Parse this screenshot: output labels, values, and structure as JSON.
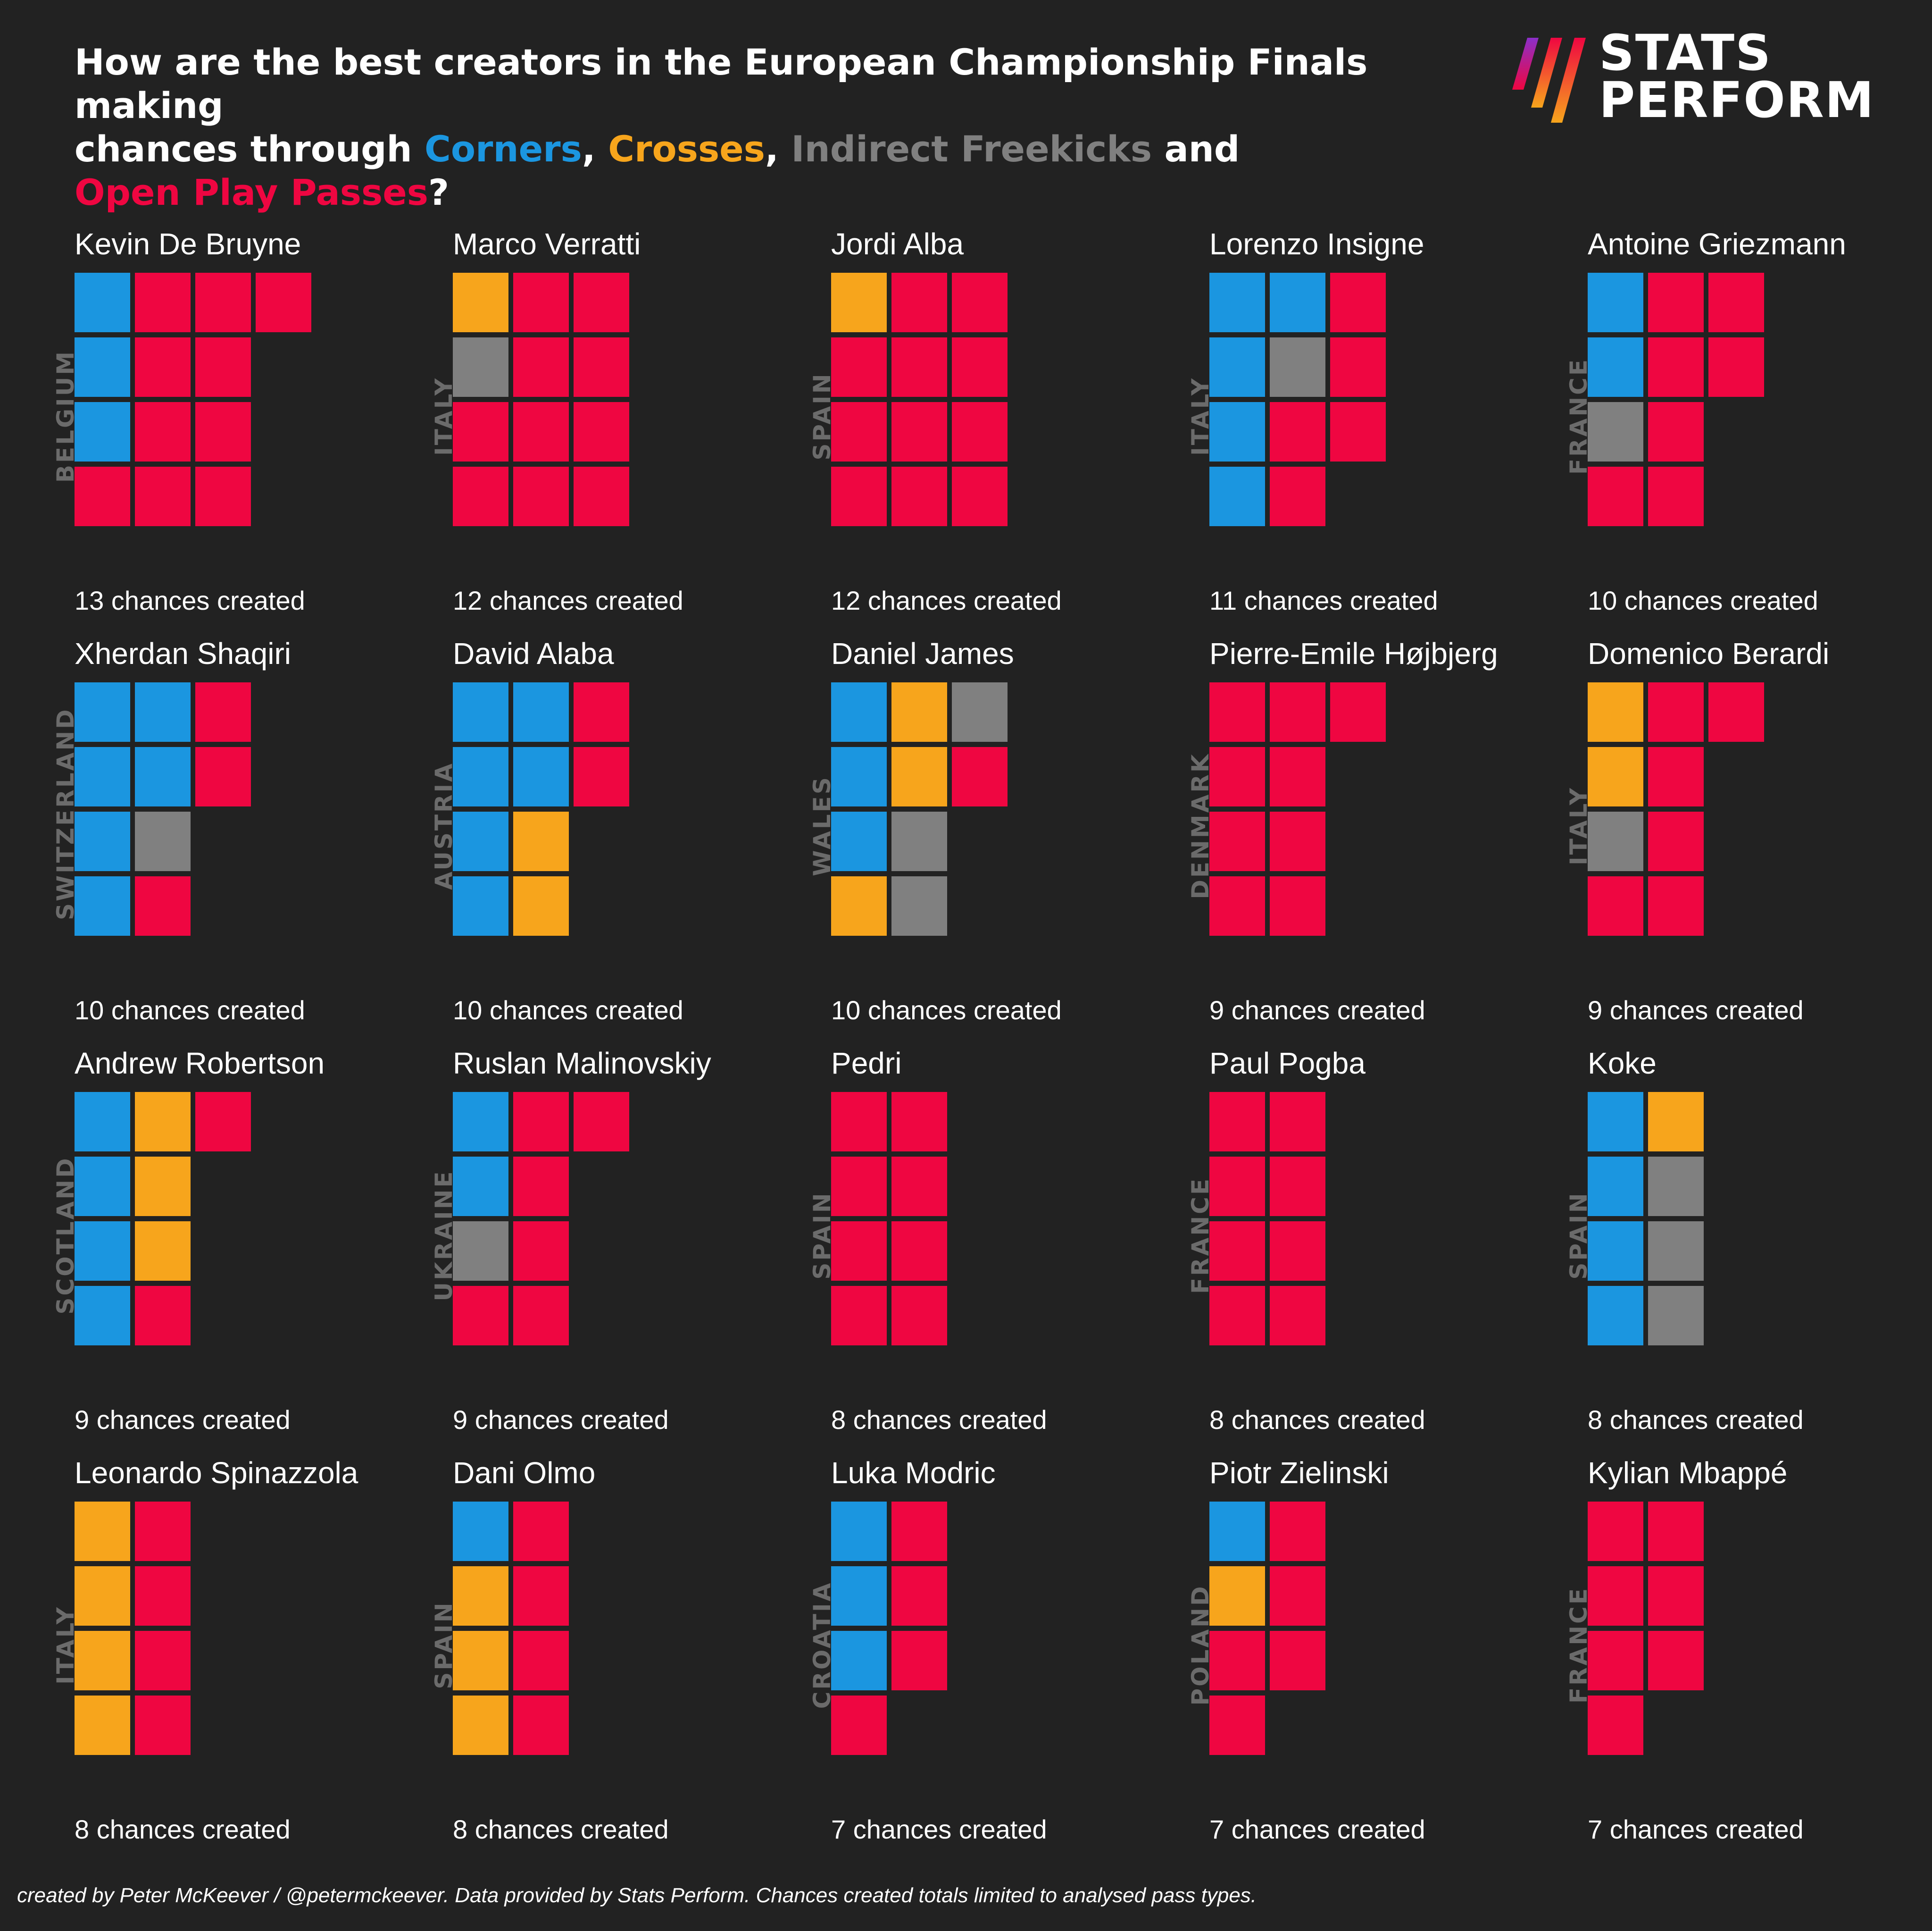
{
  "title": {
    "line1": "How are the best creators in the European Championship Finals making",
    "line2_prefix": "chances through ",
    "corners": "Corners",
    "sep1": ", ",
    "crosses": "Crosses",
    "sep2": ", ",
    "freekicks": "Indirect Freekicks",
    "and": " and",
    "openplay": "Open Play Passes",
    "end": "?"
  },
  "logo": {
    "line1": "STATS",
    "line2": "PERFORM"
  },
  "footer": "created by Peter McKeever / @petermckeever. Data provided by Stats Perform. Chances created totals limited to analysed pass types.",
  "colors": {
    "corner": "#1b96e0",
    "cross": "#f7a51c",
    "freekick": "#808080",
    "openplay": "#ef0641",
    "background": "#222222"
  },
  "chart_data": {
    "type": "waffle",
    "categories": [
      "Corners",
      "Crosses",
      "Indirect Freekicks",
      "Open Play Passes"
    ],
    "count_suffix": " chances created",
    "players": [
      {
        "name": "Kevin De Bruyne",
        "country": "BELGIUM",
        "total": 13,
        "corners": 3,
        "crosses": 0,
        "freekicks": 0,
        "openplay": 10,
        "cells": [
          "c",
          "o",
          "o",
          "o",
          "c",
          "o",
          "o",
          "c",
          "o",
          "o",
          "o",
          "o",
          "o"
        ]
      },
      {
        "name": "Marco Verratti",
        "country": "ITALY",
        "total": 12,
        "corners": 0,
        "crosses": 1,
        "freekicks": 1,
        "openplay": 10,
        "cells": [
          "x",
          "o",
          "o",
          "f",
          "o",
          "o",
          "o",
          "o",
          "o",
          "o",
          "o",
          "o"
        ]
      },
      {
        "name": "Jordi Alba",
        "country": "SPAIN",
        "total": 12,
        "corners": 0,
        "crosses": 1,
        "freekicks": 0,
        "openplay": 11,
        "cells": [
          "x",
          "o",
          "o",
          "o",
          "o",
          "o",
          "o",
          "o",
          "o",
          "o",
          "o",
          "o"
        ]
      },
      {
        "name": "Lorenzo Insigne",
        "country": "ITALY",
        "total": 11,
        "corners": 5,
        "crosses": 0,
        "freekicks": 1,
        "openplay": 5,
        "cells": [
          "c",
          "c",
          "o",
          "c",
          "f",
          "o",
          "c",
          "o",
          "o",
          "c",
          "o"
        ]
      },
      {
        "name": "Antoine Griezmann",
        "country": "FRANCE",
        "total": 10,
        "corners": 2,
        "crosses": 0,
        "freekicks": 1,
        "openplay": 7,
        "cells": [
          "c",
          "o",
          "o",
          "c",
          "o",
          "o",
          "f",
          "o",
          "o",
          "o"
        ]
      },
      {
        "name": "Xherdan Shaqiri",
        "country": "SWITZERLAND",
        "total": 10,
        "corners": 6,
        "crosses": 0,
        "freekicks": 1,
        "openplay": 3,
        "cells": [
          "c",
          "c",
          "o",
          "c",
          "c",
          "o",
          "c",
          "f",
          "c",
          "o"
        ]
      },
      {
        "name": "David Alaba",
        "country": "AUSTRIA",
        "total": 10,
        "corners": 6,
        "crosses": 2,
        "freekicks": 0,
        "openplay": 2,
        "cells": [
          "c",
          "c",
          "o",
          "c",
          "c",
          "o",
          "c",
          "x",
          "c",
          "x"
        ]
      },
      {
        "name": "Daniel James",
        "country": "WALES",
        "total": 10,
        "corners": 3,
        "crosses": 3,
        "freekicks": 3,
        "openplay": 1,
        "cells": [
          "c",
          "x",
          "f",
          "c",
          "x",
          "o",
          "c",
          "f",
          "x",
          "f"
        ]
      },
      {
        "name": "Pierre-Emile Højbjerg",
        "country": "DENMARK",
        "total": 9,
        "corners": 0,
        "crosses": 0,
        "freekicks": 0,
        "openplay": 9,
        "cells": [
          "o",
          "o",
          "o",
          "o",
          "o",
          "o",
          "o",
          "o",
          "o"
        ]
      },
      {
        "name": "Domenico Berardi",
        "country": "ITALY",
        "total": 9,
        "corners": 0,
        "crosses": 2,
        "freekicks": 1,
        "openplay": 6,
        "cells": [
          "x",
          "o",
          "o",
          "x",
          "o",
          "f",
          "o",
          "o",
          "o"
        ]
      },
      {
        "name": "Andrew Robertson",
        "country": "SCOTLAND",
        "total": 9,
        "corners": 4,
        "crosses": 3,
        "freekicks": 0,
        "openplay": 2,
        "cells": [
          "c",
          "x",
          "o",
          "c",
          "x",
          "c",
          "x",
          "c",
          "o"
        ]
      },
      {
        "name": "Ruslan Malinovskiy",
        "country": "UKRAINE",
        "total": 9,
        "corners": 2,
        "crosses": 0,
        "freekicks": 1,
        "openplay": 6,
        "cells": [
          "c",
          "o",
          "o",
          "c",
          "o",
          "f",
          "o",
          "o",
          "o"
        ]
      },
      {
        "name": "Pedri",
        "country": "SPAIN",
        "total": 8,
        "corners": 0,
        "crosses": 0,
        "freekicks": 0,
        "openplay": 8,
        "cells": [
          "o",
          "o",
          "o",
          "o",
          "o",
          "o",
          "o",
          "o"
        ]
      },
      {
        "name": "Paul Pogba",
        "country": "FRANCE",
        "total": 8,
        "corners": 0,
        "crosses": 0,
        "freekicks": 0,
        "openplay": 8,
        "cells": [
          "o",
          "o",
          "o",
          "o",
          "o",
          "o",
          "o",
          "o"
        ]
      },
      {
        "name": "Koke",
        "country": "SPAIN",
        "total": 8,
        "corners": 4,
        "crosses": 1,
        "freekicks": 3,
        "openplay": 0,
        "cells": [
          "c",
          "x",
          "c",
          "f",
          "c",
          "f",
          "c",
          "f"
        ]
      },
      {
        "name": "Leonardo Spinazzola",
        "country": "ITALY",
        "total": 8,
        "corners": 0,
        "crosses": 4,
        "freekicks": 0,
        "openplay": 4,
        "cells": [
          "x",
          "o",
          "x",
          "o",
          "x",
          "o",
          "x",
          "o"
        ]
      },
      {
        "name": "Dani Olmo",
        "country": "SPAIN",
        "total": 8,
        "corners": 1,
        "crosses": 3,
        "freekicks": 0,
        "openplay": 4,
        "cells": [
          "c",
          "o",
          "x",
          "o",
          "x",
          "o",
          "x",
          "o"
        ]
      },
      {
        "name": "Luka Modric",
        "country": "CROATIA",
        "total": 7,
        "corners": 3,
        "crosses": 0,
        "freekicks": 0,
        "openplay": 4,
        "cells": [
          "c",
          "o",
          "c",
          "o",
          "c",
          "o",
          "o"
        ]
      },
      {
        "name": "Piotr Zielinski",
        "country": "POLAND",
        "total": 7,
        "corners": 1,
        "crosses": 1,
        "freekicks": 0,
        "openplay": 5,
        "cells": [
          "c",
          "o",
          "x",
          "o",
          "o",
          "o",
          "o"
        ]
      },
      {
        "name": "Kylian Mbappé",
        "country": "FRANCE",
        "total": 7,
        "corners": 0,
        "crosses": 0,
        "freekicks": 0,
        "openplay": 7,
        "cells": [
          "o",
          "o",
          "o",
          "o",
          "o",
          "o",
          "o"
        ]
      }
    ]
  }
}
